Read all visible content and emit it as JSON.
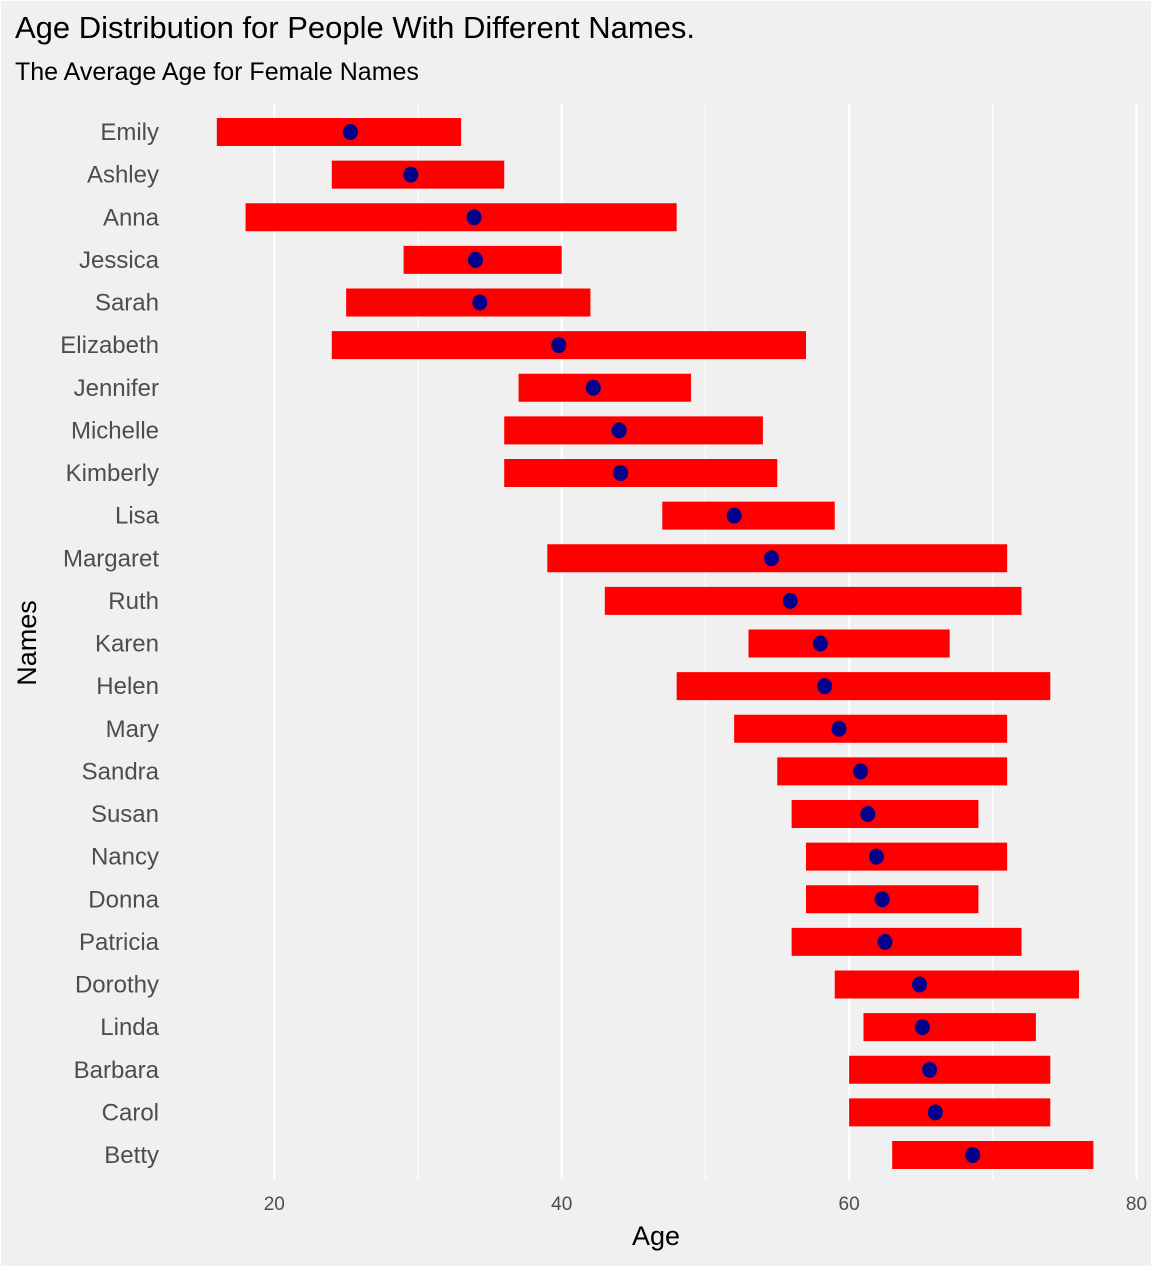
{
  "chart_data": {
    "type": "range-dot",
    "title": "Age Distribution for People With Different Names.",
    "subtitle": "The Average Age for Female Names",
    "xlabel": "Age",
    "ylabel": "Names",
    "xlim": [
      10,
      80
    ],
    "xticks": [
      20,
      40,
      60,
      80
    ],
    "xtick_labels": [
      "20",
      "40",
      "60",
      "80"
    ],
    "grid": true,
    "colors": {
      "range": "#ff0000",
      "dot": "#00008b",
      "background": "#f0f0f0",
      "grid": "#ffffff"
    },
    "series": [
      {
        "name": "Emily",
        "low": 16,
        "high": 33,
        "mean": 25.3
      },
      {
        "name": "Ashley",
        "low": 24,
        "high": 36,
        "mean": 29.5
      },
      {
        "name": "Anna",
        "low": 18,
        "high": 48,
        "mean": 33.9
      },
      {
        "name": "Jessica",
        "low": 29,
        "high": 40,
        "mean": 34.0
      },
      {
        "name": "Sarah",
        "low": 25,
        "high": 42,
        "mean": 34.3
      },
      {
        "name": "Elizabeth",
        "low": 24,
        "high": 57,
        "mean": 39.8
      },
      {
        "name": "Jennifer",
        "low": 37,
        "high": 49,
        "mean": 42.2
      },
      {
        "name": "Michelle",
        "low": 36,
        "high": 54,
        "mean": 44.0
      },
      {
        "name": "Kimberly",
        "low": 36,
        "high": 55,
        "mean": 44.1
      },
      {
        "name": "Lisa",
        "low": 47,
        "high": 59,
        "mean": 52.0
      },
      {
        "name": "Margaret",
        "low": 39,
        "high": 71,
        "mean": 54.6
      },
      {
        "name": "Ruth",
        "low": 43,
        "high": 72,
        "mean": 55.9
      },
      {
        "name": "Karen",
        "low": 53,
        "high": 67,
        "mean": 58.0
      },
      {
        "name": "Helen",
        "low": 48,
        "high": 74,
        "mean": 58.3
      },
      {
        "name": "Mary",
        "low": 52,
        "high": 71,
        "mean": 59.3
      },
      {
        "name": "Sandra",
        "low": 55,
        "high": 71,
        "mean": 60.8
      },
      {
        "name": "Susan",
        "low": 56,
        "high": 69,
        "mean": 61.3
      },
      {
        "name": "Nancy",
        "low": 57,
        "high": 71,
        "mean": 61.9
      },
      {
        "name": "Donna",
        "low": 57,
        "high": 69,
        "mean": 62.3
      },
      {
        "name": "Patricia",
        "low": 56,
        "high": 72,
        "mean": 62.5
      },
      {
        "name": "Dorothy",
        "low": 59,
        "high": 76,
        "mean": 64.9
      },
      {
        "name": "Linda",
        "low": 61,
        "high": 73,
        "mean": 65.1
      },
      {
        "name": "Barbara",
        "low": 60,
        "high": 74,
        "mean": 65.6
      },
      {
        "name": "Carol",
        "low": 60,
        "high": 74,
        "mean": 66.0
      },
      {
        "name": "Betty",
        "low": 63,
        "high": 77,
        "mean": 68.6
      }
    ]
  }
}
